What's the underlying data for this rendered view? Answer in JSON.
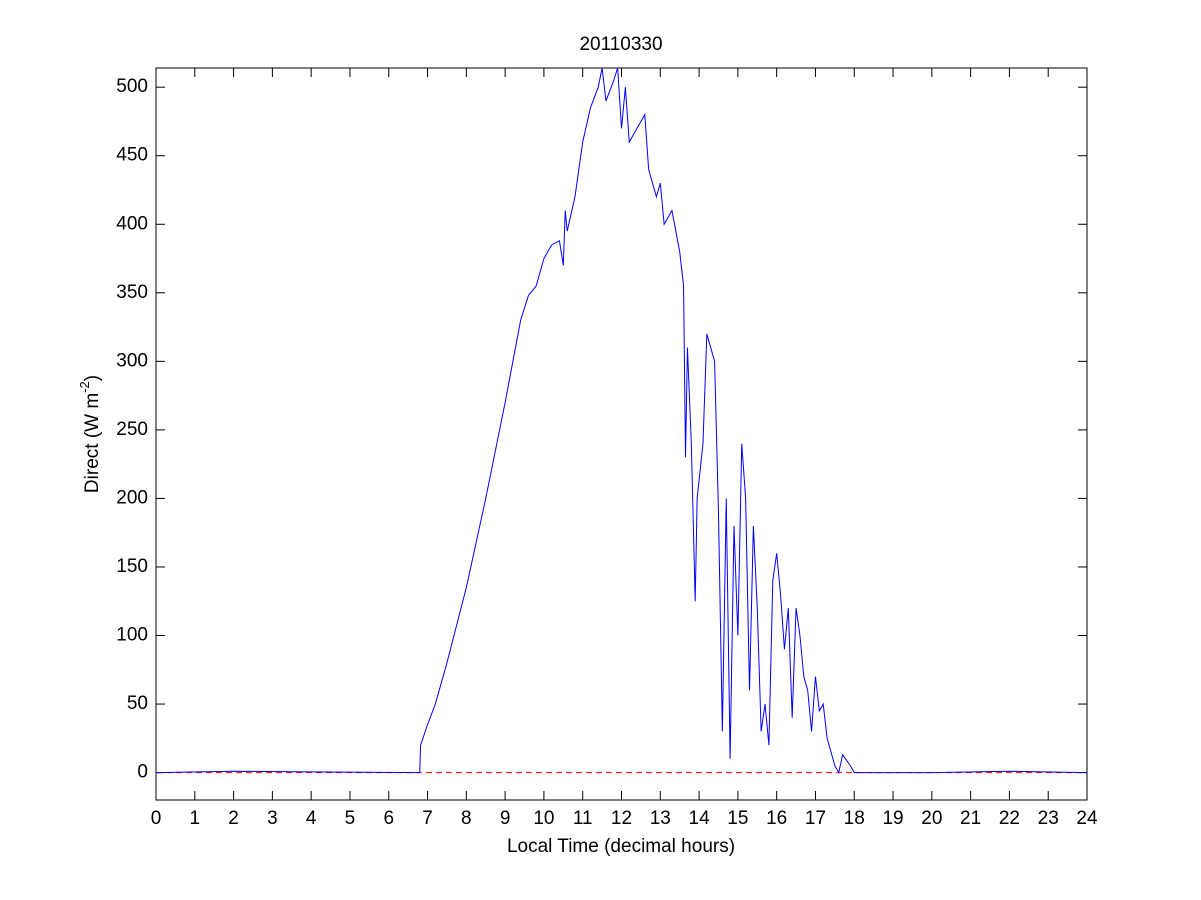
{
  "chart_data": {
    "type": "line",
    "title": "20110330",
    "xlabel": "Local Time (decimal hours)",
    "ylabel": {
      "text": "Direct (W m",
      "superscript": "-2",
      "suffix": ")"
    },
    "x": [
      0,
      2,
      4,
      6.8,
      6.82,
      7.0,
      7.2,
      7.5,
      8.0,
      8.5,
      9.0,
      9.2,
      9.4,
      9.6,
      9.8,
      10.0,
      10.2,
      10.4,
      10.5,
      10.55,
      10.6,
      10.8,
      11.0,
      11.2,
      11.4,
      11.5,
      11.6,
      11.8,
      11.9,
      12.0,
      12.1,
      12.2,
      12.4,
      12.6,
      12.7,
      12.9,
      13.0,
      13.1,
      13.3,
      13.5,
      13.6,
      13.65,
      13.7,
      13.8,
      13.9,
      13.95,
      14.1,
      14.2,
      14.4,
      14.5,
      14.6,
      14.7,
      14.8,
      14.9,
      15.0,
      15.1,
      15.2,
      15.3,
      15.4,
      15.5,
      15.6,
      15.7,
      15.8,
      15.9,
      16.0,
      16.1,
      16.2,
      16.3,
      16.4,
      16.5,
      16.6,
      16.7,
      16.8,
      16.9,
      17.0,
      17.1,
      17.2,
      17.3,
      17.4,
      17.5,
      17.6,
      17.7,
      17.9,
      18.0,
      20,
      22,
      24
    ],
    "series": [
      {
        "color": "#0000ff",
        "values": [
          0,
          1,
          0.5,
          0,
          20,
          35,
          50,
          80,
          135,
          200,
          270,
          300,
          330,
          348,
          355,
          375,
          385,
          388,
          370,
          410,
          395,
          420,
          460,
          485,
          500,
          514,
          490,
          505,
          514,
          470,
          500,
          460,
          470,
          480,
          440,
          420,
          430,
          400,
          410,
          380,
          355,
          230,
          310,
          240,
          125,
          200,
          240,
          320,
          300,
          190,
          30,
          200,
          10,
          180,
          100,
          240,
          200,
          60,
          180,
          120,
          30,
          50,
          20,
          140,
          160,
          130,
          90,
          120,
          40,
          120,
          100,
          70,
          60,
          30,
          70,
          45,
          50,
          25,
          15,
          5,
          0,
          13,
          5,
          0,
          0,
          1,
          0
        ]
      }
    ],
    "reference_line": {
      "y": 0,
      "color": "#ff0000",
      "style": "dashed"
    },
    "xlim": [
      0,
      24
    ],
    "ylim": [
      -20,
      514
    ],
    "xticks": [
      0,
      1,
      2,
      3,
      4,
      5,
      6,
      7,
      8,
      9,
      10,
      11,
      12,
      13,
      14,
      15,
      16,
      17,
      18,
      19,
      20,
      21,
      22,
      23,
      24
    ],
    "yticks": [
      0,
      50,
      100,
      150,
      200,
      250,
      300,
      350,
      400,
      450,
      500
    ],
    "grid": false
  }
}
